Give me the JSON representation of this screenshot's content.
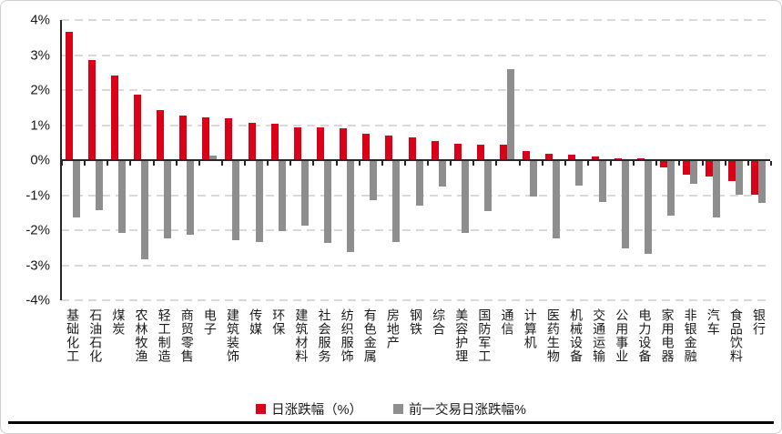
{
  "chart_data": {
    "type": "bar",
    "title": "",
    "xlabel": "",
    "ylabel": "",
    "categories": [
      "基础化工",
      "石油石化",
      "煤炭",
      "农林牧渔",
      "轻工制造",
      "商贸零售",
      "电子",
      "建筑装饰",
      "传媒",
      "环保",
      "建筑材料",
      "社会服务",
      "纺织服饰",
      "有色金属",
      "房地产",
      "钢铁",
      "综合",
      "美容护理",
      "国防军工",
      "通信",
      "计算机",
      "医药生物",
      "机械设备",
      "交通运输",
      "公用事业",
      "电力设备",
      "家用电器",
      "非银金融",
      "汽车",
      "食品饮料",
      "银行"
    ],
    "series": [
      {
        "name": "日涨跌幅（%）",
        "color": "#da0018",
        "values": [
          3.65,
          2.85,
          2.42,
          1.88,
          1.42,
          1.28,
          1.22,
          1.2,
          1.07,
          1.04,
          0.94,
          0.93,
          0.9,
          0.76,
          0.7,
          0.66,
          0.55,
          0.46,
          0.44,
          0.44,
          0.26,
          0.18,
          0.16,
          0.1,
          0.06,
          0.05,
          -0.17,
          -0.4,
          -0.44,
          -0.57,
          -0.97
        ]
      },
      {
        "name": "前一交易日涨跌幅%",
        "color": "#8e8e8e",
        "values": [
          -1.6,
          -1.4,
          -2.06,
          -2.8,
          -2.22,
          -2.1,
          0.14,
          -2.25,
          -2.3,
          -1.99,
          -1.84,
          -2.34,
          -2.6,
          -1.12,
          -2.3,
          -1.28,
          -0.74,
          -2.06,
          -1.44,
          2.6,
          -1.0,
          -2.21,
          -0.71,
          -1.16,
          -2.49,
          -2.65,
          -1.56,
          -0.66,
          -1.6,
          -0.95,
          -1.19
        ]
      }
    ],
    "ylim": [
      -4,
      4
    ],
    "ytick_values": [
      4,
      3,
      2,
      1,
      0,
      -1,
      -2,
      -3,
      -4
    ],
    "ytick_labels": [
      "4%",
      "3%",
      "2%",
      "1%",
      "0%",
      "-1%",
      "-2%",
      "-3%",
      "-4%"
    ],
    "grid": "horizontal-dashed",
    "legend_position": "bottom-center"
  },
  "colors": {
    "axis": "#262626",
    "gridline": "#d9d9d9",
    "text": "#1a1a1a"
  }
}
